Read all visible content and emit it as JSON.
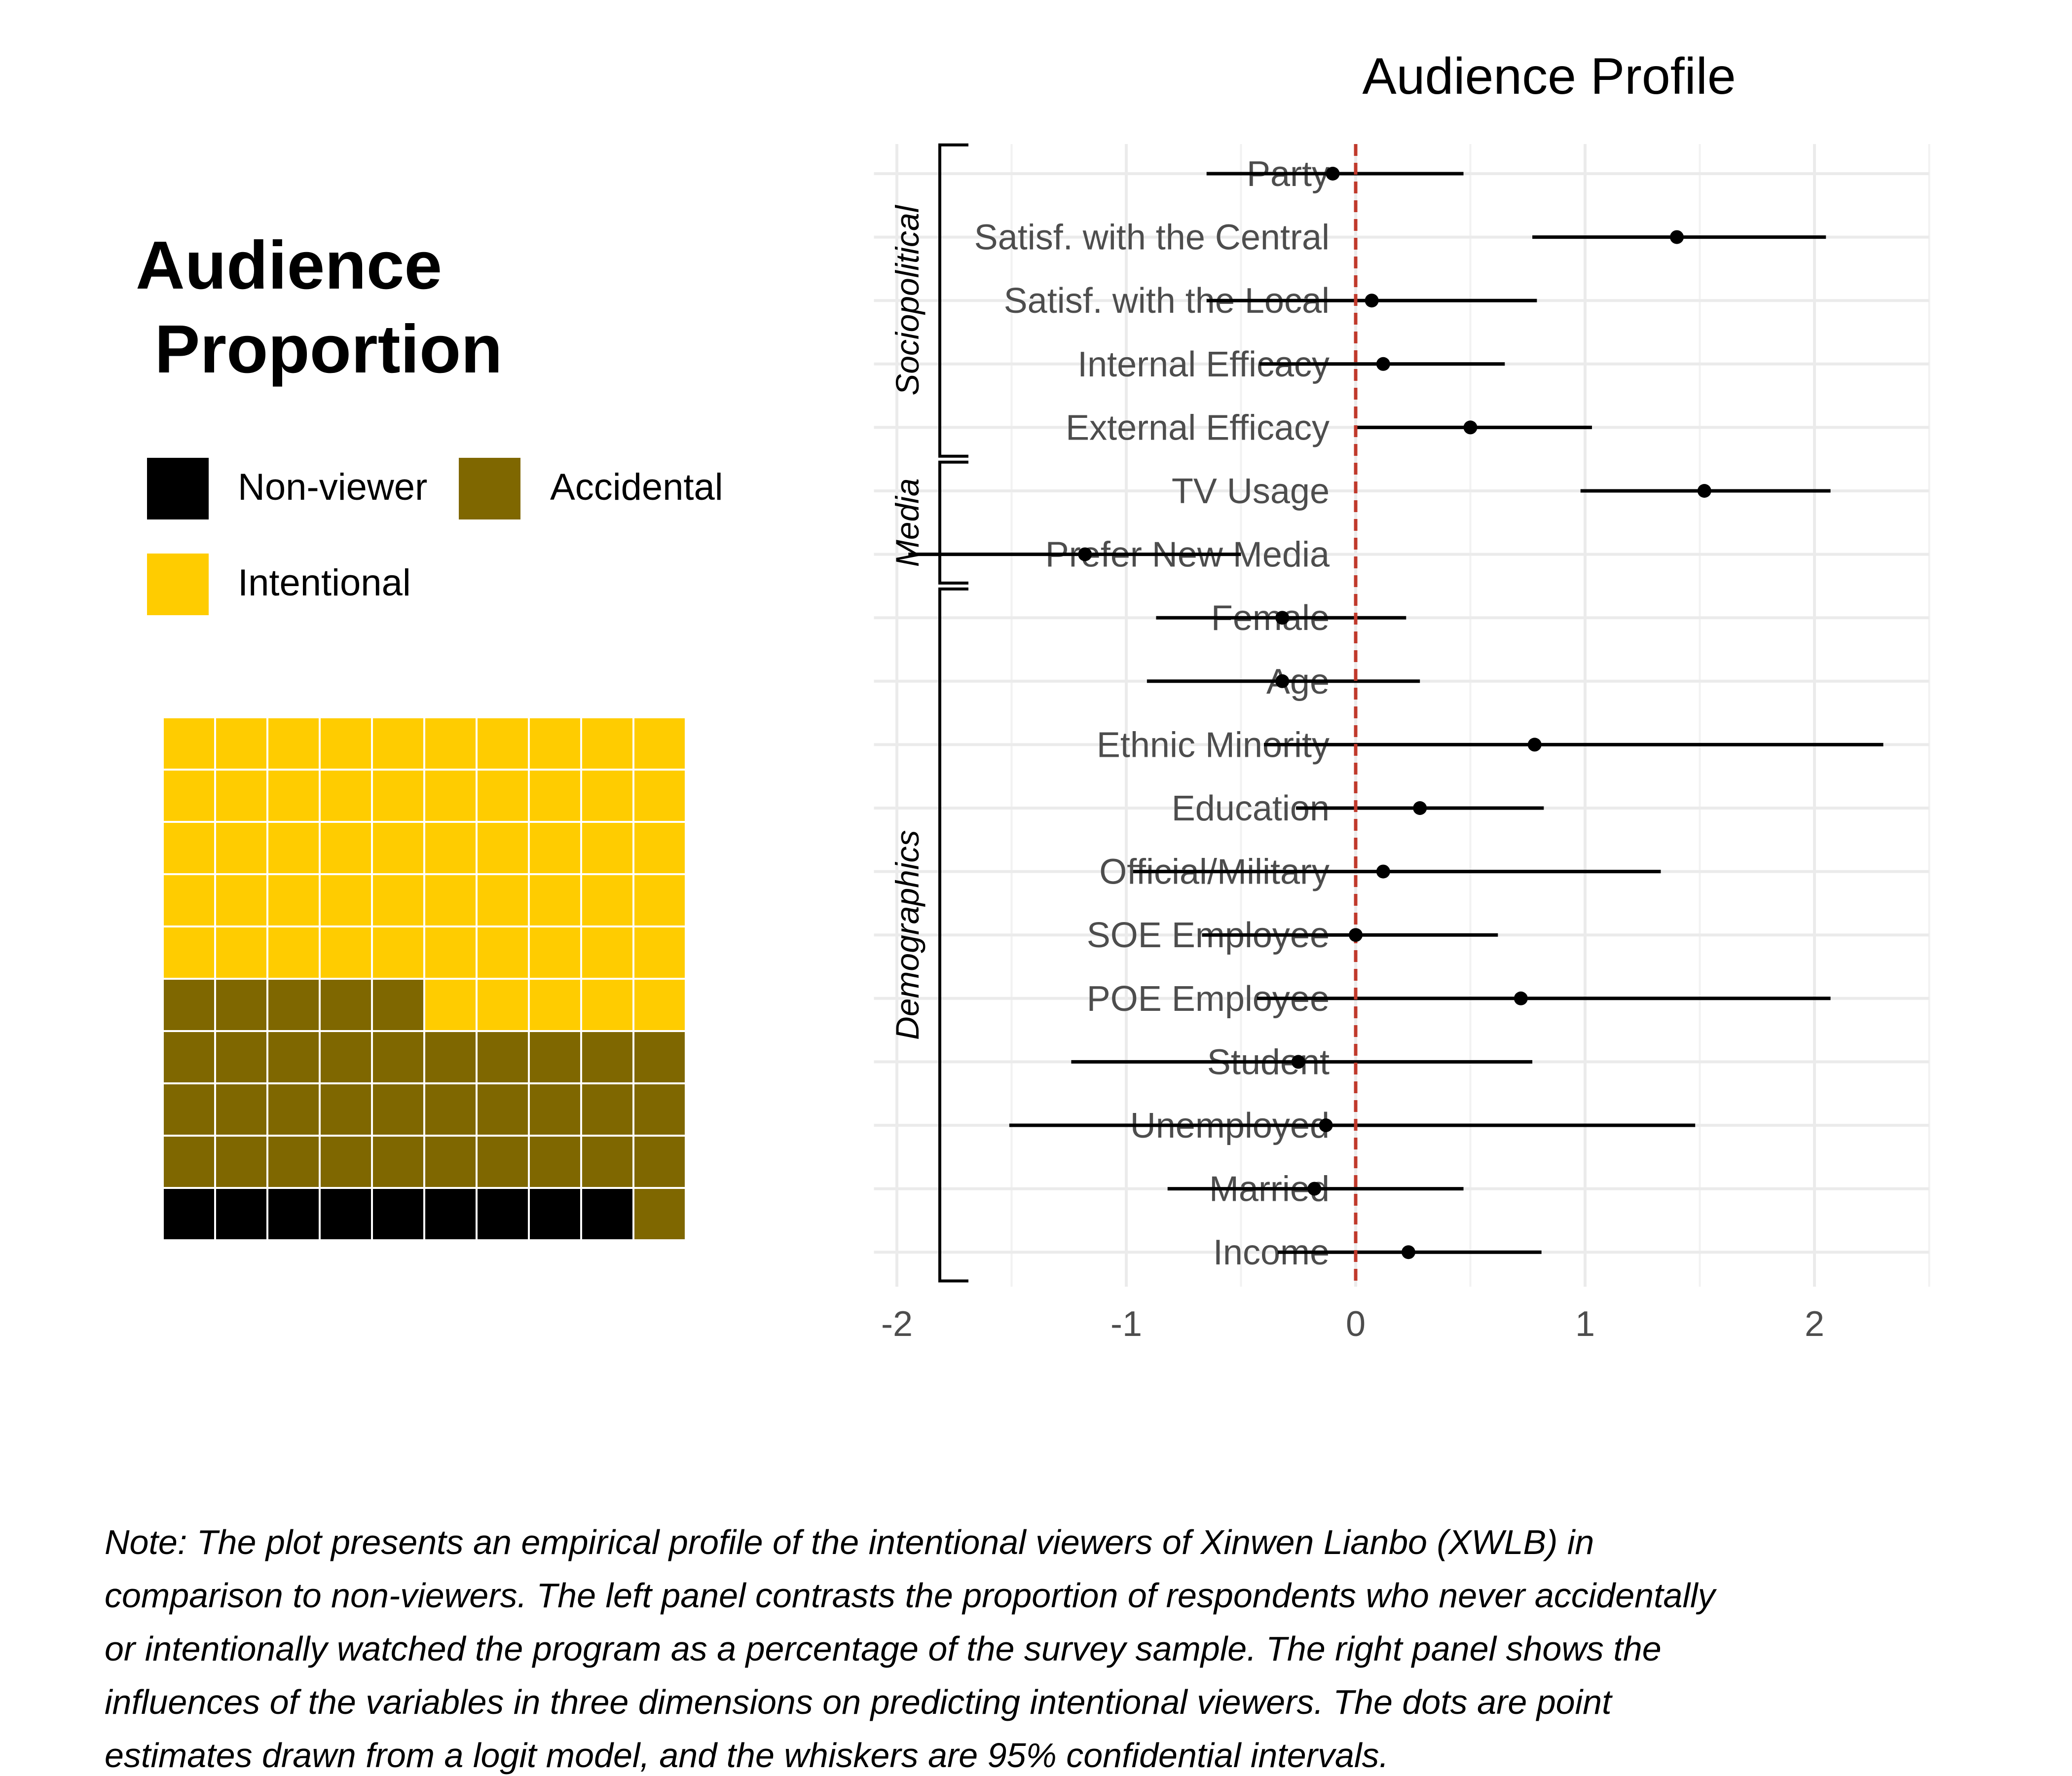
{
  "chart_data": [
    {
      "type": "waffle",
      "title_lines": [
        "Audience",
        " Proportion"
      ],
      "legend": [
        {
          "name": "Non-viewer",
          "color": "#000000"
        },
        {
          "name": "Accidental",
          "color": "#7f6700"
        },
        {
          "name": "Intentional",
          "color": "#ffcc00"
        }
      ],
      "grid": {
        "rows": 10,
        "cols": 10
      },
      "counts": {
        "Non-viewer": 9,
        "Accidental": 36,
        "Intentional": 55
      }
    },
    {
      "type": "coefficient-plot",
      "title": "Audience Profile",
      "xlim": [
        -2.1,
        2.5
      ],
      "xticks": [
        -2,
        -1,
        0,
        1,
        2
      ],
      "reference_line": 0,
      "groups": [
        {
          "name": "Sociopolitical",
          "items": [
            "Party",
            "Satisf. with the Central",
            "Satisf. with the Local",
            "Internal Efficacy",
            "External Efficacy"
          ]
        },
        {
          "name": "Media",
          "items": [
            "TV Usage",
            "Prefer New Media"
          ]
        },
        {
          "name": "Demographics",
          "items": [
            "Female",
            "Age",
            "Ethnic Minority",
            "Education",
            "Official/Military",
            "SOE Employee",
            "POE Employee",
            "Student",
            "Unemployed",
            "Married",
            "Income"
          ]
        }
      ],
      "estimates": [
        {
          "label": "Party",
          "estimate": -0.1,
          "lower": -0.65,
          "upper": 0.47
        },
        {
          "label": "Satisf. with the Central",
          "estimate": 1.4,
          "lower": 0.77,
          "upper": 2.05
        },
        {
          "label": "Satisf. with the Local",
          "estimate": 0.07,
          "lower": -0.65,
          "upper": 0.79
        },
        {
          "label": "Internal Efficacy",
          "estimate": 0.12,
          "lower": -0.42,
          "upper": 0.65
        },
        {
          "label": "External Efficacy",
          "estimate": 0.5,
          "lower": 0.0,
          "upper": 1.03
        },
        {
          "label": "TV Usage",
          "estimate": 1.52,
          "lower": 0.98,
          "upper": 2.07
        },
        {
          "label": "Prefer New Media",
          "estimate": -1.18,
          "lower": -1.95,
          "upper": -0.5
        },
        {
          "label": "Female",
          "estimate": -0.32,
          "lower": -0.87,
          "upper": 0.22
        },
        {
          "label": "Age",
          "estimate": -0.32,
          "lower": -0.91,
          "upper": 0.28
        },
        {
          "label": "Ethnic Minority",
          "estimate": 0.78,
          "lower": -0.4,
          "upper": 2.3
        },
        {
          "label": "Education",
          "estimate": 0.28,
          "lower": -0.26,
          "upper": 0.82
        },
        {
          "label": "Official/Military",
          "estimate": 0.12,
          "lower": -0.97,
          "upper": 1.33
        },
        {
          "label": "SOE Employee",
          "estimate": 0.0,
          "lower": -0.67,
          "upper": 0.62
        },
        {
          "label": "POE Employee",
          "estimate": 0.72,
          "lower": -0.43,
          "upper": 2.07
        },
        {
          "label": "Student",
          "estimate": -0.25,
          "lower": -1.24,
          "upper": 0.77
        },
        {
          "label": "Unemployed",
          "estimate": -0.13,
          "lower": -1.51,
          "upper": 1.48
        },
        {
          "label": "Married",
          "estimate": -0.18,
          "lower": -0.82,
          "upper": 0.47
        },
        {
          "label": "Income",
          "estimate": 0.23,
          "lower": -0.34,
          "upper": 0.81
        }
      ]
    }
  ],
  "note_lines": [
    "Note: The plot presents an empirical profile of the intentional viewers of Xinwen Lianbo (XWLB) in",
    "comparison to non-viewers. The left panel contrasts the proportion of respondents who never accidentally",
    "or intentionally watched the program as a percentage of the survey sample. The right panel shows the",
    "influences of the variables in three dimensions on predicting intentional viewers. The dots are point",
    "estimates drawn from a logit model, and the whiskers are 95% confidential intervals."
  ]
}
